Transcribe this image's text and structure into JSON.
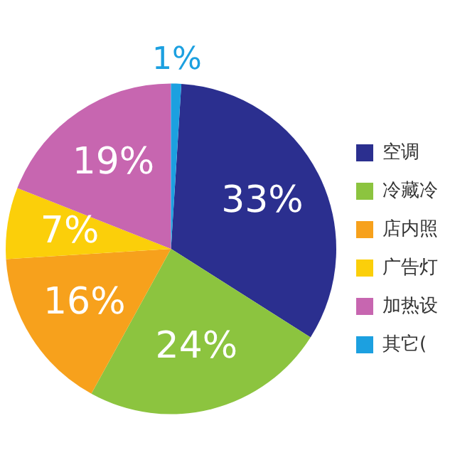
{
  "chart_data": {
    "type": "pie",
    "categories": [
      "空调",
      "冷藏冷",
      "店内照",
      "广告灯",
      "加热设",
      "其它("
    ],
    "values": [
      33,
      24,
      16,
      7,
      19,
      1
    ],
    "colors": [
      "#2b2f8f",
      "#8cc43f",
      "#f7a11c",
      "#fbcf0a",
      "#c766b0",
      "#1ca0e0"
    ],
    "value_labels": [
      "33%",
      "24%",
      "16%",
      "7%",
      "19%",
      "1%"
    ],
    "legend": "right"
  }
}
